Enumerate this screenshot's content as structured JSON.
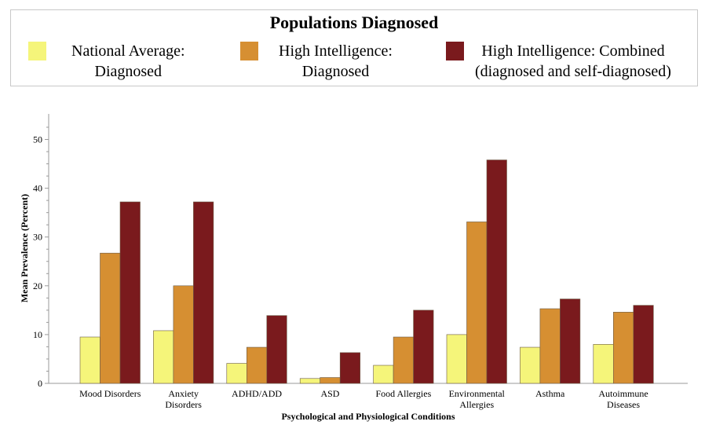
{
  "legend": {
    "title": "Populations Diagnosed"
  },
  "chart_data": {
    "type": "bar",
    "xlabel": "Psychological and Physiological Conditions",
    "ylabel": "Mean Prevalence (Percent)",
    "ylim": [
      0,
      53
    ],
    "yticks": [
      0,
      10,
      20,
      30,
      40,
      50
    ],
    "grid": false,
    "legend_position": "top",
    "categories": [
      "Mood Disorders",
      "Anxiety\nDisorders",
      "ADHD/ADD",
      "ASD",
      "Food Allergies",
      "Environmental\nAllergies",
      "Asthma",
      "Autoimmune\nDiseases"
    ],
    "series": [
      {
        "name": "National Average:\nDiagnosed",
        "color": "#f5f57a",
        "values": [
          9.5,
          10.8,
          4.1,
          1.0,
          3.7,
          10.0,
          7.4,
          8.0
        ]
      },
      {
        "name": "High Intelligence:\nDiagnosed",
        "color": "#d68f32",
        "values": [
          26.7,
          20.0,
          7.4,
          1.2,
          9.5,
          33.1,
          15.3,
          14.6
        ]
      },
      {
        "name": "High Intelligence: Combined\n(diagnosed and self-diagnosed)",
        "color": "#7a1a1d",
        "values": [
          37.2,
          37.2,
          13.9,
          6.3,
          15.0,
          45.8,
          17.3,
          16.0
        ]
      }
    ]
  }
}
